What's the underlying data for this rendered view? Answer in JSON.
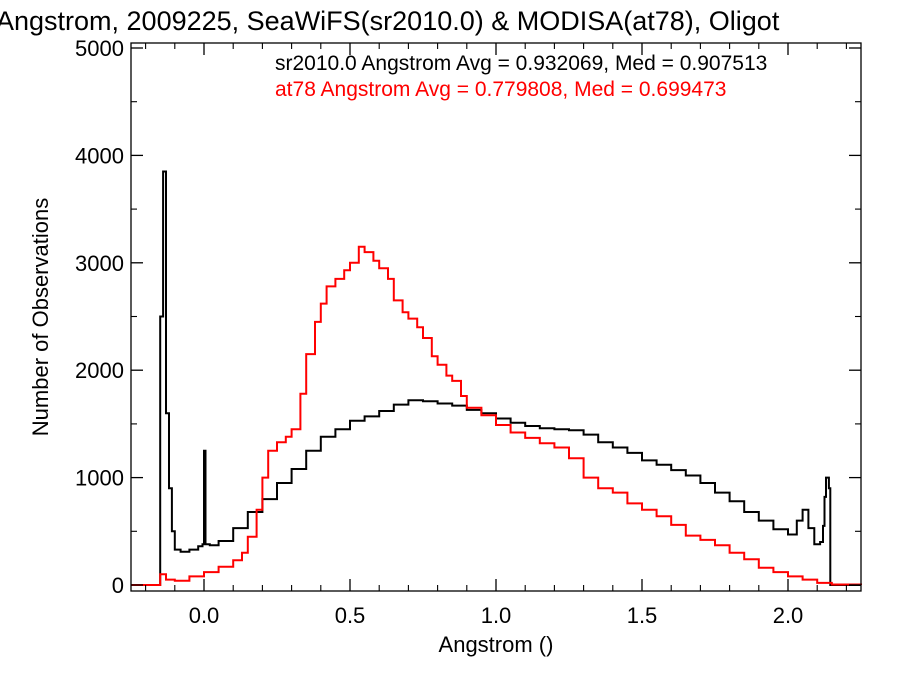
{
  "chart_data": {
    "type": "histogram",
    "title": "Angstrom, 2009225, SeaWiFS(sr2010.0) & MODISA(at78), Oligot",
    "xlabel": "Angstrom ()",
    "ylabel": "Number of Observations",
    "xlim": [
      -0.25,
      2.25
    ],
    "ylim": [
      0,
      5000
    ],
    "xticks": [
      "0.0",
      "0.5",
      "1.0",
      "1.5",
      "2.0"
    ],
    "yticks": [
      "0",
      "1000",
      "2000",
      "3000",
      "4000",
      "5000"
    ],
    "grid": false,
    "legend_position": "top-right",
    "annotations": [
      {
        "text": "sr2010.0 Angstrom Avg = 0.932069, Med = 0.907513",
        "color": "#000000"
      },
      {
        "text": "at78 Angstrom Avg = 0.779808, Med = 0.699473",
        "color": "#ff0000"
      }
    ],
    "series": [
      {
        "name": "sr2010.0",
        "color": "#000000",
        "points": [
          [
            -0.25,
            0
          ],
          [
            -0.155,
            0
          ],
          [
            -0.15,
            2500
          ],
          [
            -0.14,
            3850
          ],
          [
            -0.13,
            1600
          ],
          [
            -0.12,
            900
          ],
          [
            -0.11,
            500
          ],
          [
            -0.1,
            330
          ],
          [
            -0.08,
            310
          ],
          [
            -0.05,
            330
          ],
          [
            -0.02,
            360
          ],
          [
            -0.005,
            380
          ],
          [
            0.0,
            1250
          ],
          [
            0.005,
            380
          ],
          [
            0.02,
            370
          ],
          [
            0.05,
            410
          ],
          [
            0.1,
            530
          ],
          [
            0.15,
            680
          ],
          [
            0.2,
            800
          ],
          [
            0.25,
            950
          ],
          [
            0.3,
            1080
          ],
          [
            0.35,
            1250
          ],
          [
            0.4,
            1380
          ],
          [
            0.45,
            1450
          ],
          [
            0.5,
            1530
          ],
          [
            0.55,
            1570
          ],
          [
            0.6,
            1620
          ],
          [
            0.65,
            1680
          ],
          [
            0.7,
            1720
          ],
          [
            0.75,
            1710
          ],
          [
            0.8,
            1690
          ],
          [
            0.85,
            1670
          ],
          [
            0.9,
            1630
          ],
          [
            0.95,
            1600
          ],
          [
            1.0,
            1550
          ],
          [
            1.05,
            1510
          ],
          [
            1.1,
            1480
          ],
          [
            1.15,
            1460
          ],
          [
            1.2,
            1450
          ],
          [
            1.25,
            1440
          ],
          [
            1.3,
            1400
          ],
          [
            1.35,
            1330
          ],
          [
            1.4,
            1280
          ],
          [
            1.45,
            1230
          ],
          [
            1.5,
            1160
          ],
          [
            1.55,
            1120
          ],
          [
            1.6,
            1070
          ],
          [
            1.65,
            1020
          ],
          [
            1.7,
            950
          ],
          [
            1.75,
            860
          ],
          [
            1.8,
            780
          ],
          [
            1.85,
            680
          ],
          [
            1.9,
            600
          ],
          [
            1.95,
            520
          ],
          [
            2.0,
            470
          ],
          [
            2.03,
            600
          ],
          [
            2.05,
            700
          ],
          [
            2.07,
            530
          ],
          [
            2.09,
            380
          ],
          [
            2.11,
            400
          ],
          [
            2.12,
            550
          ],
          [
            2.125,
            820
          ],
          [
            2.13,
            1000
          ],
          [
            2.14,
            900
          ],
          [
            2.145,
            0
          ],
          [
            2.25,
            0
          ]
        ]
      },
      {
        "name": "at78",
        "color": "#ff0000",
        "points": [
          [
            -0.25,
            0
          ],
          [
            -0.16,
            0
          ],
          [
            -0.15,
            100
          ],
          [
            -0.13,
            50
          ],
          [
            -0.1,
            40
          ],
          [
            -0.05,
            80
          ],
          [
            0.0,
            120
          ],
          [
            0.05,
            170
          ],
          [
            0.1,
            230
          ],
          [
            0.13,
            300
          ],
          [
            0.15,
            450
          ],
          [
            0.18,
            700
          ],
          [
            0.2,
            1000
          ],
          [
            0.22,
            1250
          ],
          [
            0.25,
            1330
          ],
          [
            0.28,
            1380
          ],
          [
            0.3,
            1450
          ],
          [
            0.33,
            1780
          ],
          [
            0.35,
            2150
          ],
          [
            0.38,
            2450
          ],
          [
            0.4,
            2620
          ],
          [
            0.42,
            2780
          ],
          [
            0.45,
            2850
          ],
          [
            0.48,
            2930
          ],
          [
            0.5,
            3000
          ],
          [
            0.53,
            3150
          ],
          [
            0.55,
            3100
          ],
          [
            0.58,
            3020
          ],
          [
            0.6,
            2950
          ],
          [
            0.63,
            2850
          ],
          [
            0.65,
            2650
          ],
          [
            0.68,
            2540
          ],
          [
            0.7,
            2480
          ],
          [
            0.73,
            2400
          ],
          [
            0.75,
            2300
          ],
          [
            0.78,
            2130
          ],
          [
            0.8,
            2050
          ],
          [
            0.83,
            1950
          ],
          [
            0.85,
            1900
          ],
          [
            0.88,
            1760
          ],
          [
            0.9,
            1650
          ],
          [
            0.95,
            1580
          ],
          [
            1.0,
            1490
          ],
          [
            1.05,
            1420
          ],
          [
            1.1,
            1370
          ],
          [
            1.15,
            1320
          ],
          [
            1.2,
            1280
          ],
          [
            1.25,
            1180
          ],
          [
            1.3,
            1000
          ],
          [
            1.35,
            900
          ],
          [
            1.4,
            860
          ],
          [
            1.45,
            760
          ],
          [
            1.5,
            700
          ],
          [
            1.55,
            640
          ],
          [
            1.6,
            560
          ],
          [
            1.65,
            460
          ],
          [
            1.7,
            420
          ],
          [
            1.75,
            370
          ],
          [
            1.8,
            300
          ],
          [
            1.85,
            240
          ],
          [
            1.9,
            160
          ],
          [
            1.95,
            120
          ],
          [
            2.0,
            80
          ],
          [
            2.05,
            50
          ],
          [
            2.1,
            20
          ],
          [
            2.15,
            5
          ],
          [
            2.25,
            0
          ]
        ]
      }
    ]
  }
}
